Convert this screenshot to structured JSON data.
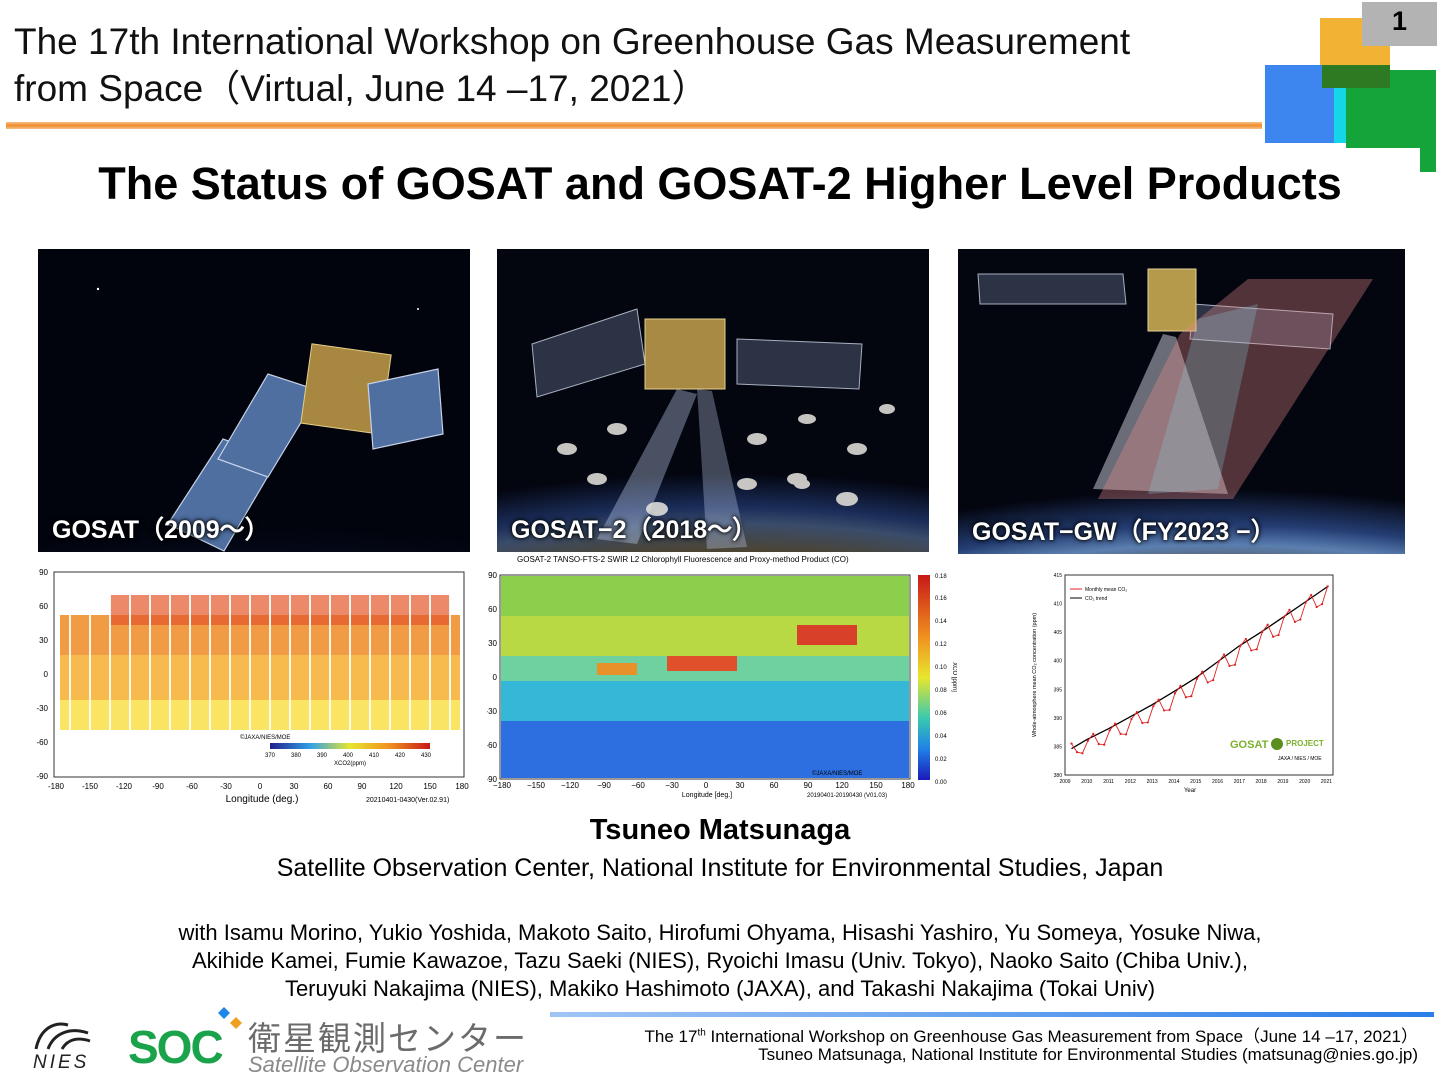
{
  "header": {
    "title_line1": "The 17th International Workshop on Greenhouse Gas Measurement",
    "title_line2": "from Space（Virtual, June 14 –17, 2021）",
    "page_number": "1",
    "accent_colors": [
      "#f2b233",
      "#3d86f0",
      "#14a43a",
      "#14d6e8",
      "#ef8c2a"
    ]
  },
  "main_title": "The Status of GOSAT and GOSAT-2 Higher Level Products",
  "photos": [
    {
      "caption": "GOSAT（2009～）"
    },
    {
      "caption": "GOSAT−2（2018～）"
    },
    {
      "caption": "GOSAT−GW（FY2023 −）"
    }
  ],
  "map_xco2": {
    "y_ticks": [
      "90",
      "60",
      "30",
      "0",
      "-30",
      "-60",
      "-90"
    ],
    "x_ticks": [
      "-180",
      "-150",
      "-120",
      "-90",
      "-60",
      "-30",
      "0",
      "30",
      "60",
      "90",
      "120",
      "150",
      "180"
    ],
    "xlabel": "Longitude (deg.)",
    "credit": "©JAXA/NIES/MOE",
    "colorbar_ticks": [
      "370",
      "380",
      "390",
      "400",
      "410",
      "420",
      "430"
    ],
    "colorbar_label": "XCO2(ppm)",
    "period": "20210401-0430(Ver.02.91)"
  },
  "map_xco": {
    "title": "GOSAT-2 TANSO-FTS-2 SWIR L2 Chlorophyll Fluorescence and Proxy-method Product (CO)",
    "y_ticks": [
      "90",
      "60",
      "30",
      "0",
      "-30",
      "-60",
      "-90"
    ],
    "x_ticks": [
      "−180",
      "−150",
      "−120",
      "−90",
      "−60",
      "−30",
      "0",
      "30",
      "60",
      "90",
      "120",
      "150",
      "180"
    ],
    "xlabel": "Longitude [deg.]",
    "colorbar_ticks": [
      "0.18",
      "0.16",
      "0.14",
      "0.12",
      "0.10",
      "0.08",
      "0.06",
      "0.04",
      "0.02",
      "0.00"
    ],
    "colorbar_label": "XCO [ppm]",
    "credit": "©JAXA/NIES/MOE",
    "period": "20190401-20190430 (V01.03)"
  },
  "chart_data": {
    "type": "line",
    "title": "",
    "xlabel": "Year",
    "ylabel": "Whole-atmosphere mean CO₂ concentration (ppm)",
    "x_ticks": [
      "2009",
      "2010",
      "2011",
      "2012",
      "2013",
      "2014",
      "2015",
      "2016",
      "2017",
      "2018",
      "2019",
      "2020",
      "2021"
    ],
    "y_ticks": [
      "380",
      "385",
      "390",
      "395",
      "400",
      "405",
      "410",
      "415"
    ],
    "ylim": [
      380,
      415
    ],
    "xlim": [
      2009,
      2021.3
    ],
    "legend": [
      "Monthly mean CO₂",
      "CO₂ trend"
    ],
    "legend_position": "top-left",
    "series": [
      {
        "name": "CO₂ trend",
        "color": "#000000",
        "x": [
          2009.3,
          2010,
          2011,
          2012,
          2013,
          2014,
          2015,
          2016,
          2017,
          2018,
          2019,
          2020,
          2021.1
        ],
        "y": [
          384.6,
          386.2,
          388.1,
          390.2,
          392.3,
          394.6,
          397.0,
          399.8,
          402.6,
          405.0,
          407.6,
          410.2,
          413.1
        ]
      },
      {
        "name": "Monthly mean CO₂",
        "color": "#e02020",
        "x": [
          2009.3,
          2009.55,
          2009.8,
          2010.05,
          2010.3,
          2010.55,
          2010.8,
          2011.05,
          2011.3,
          2011.55,
          2011.8,
          2012.05,
          2012.3,
          2012.55,
          2012.8,
          2013.05,
          2013.3,
          2013.55,
          2013.8,
          2014.05,
          2014.3,
          2014.55,
          2014.8,
          2015.05,
          2015.3,
          2015.55,
          2015.8,
          2016.05,
          2016.3,
          2016.55,
          2016.8,
          2017.05,
          2017.3,
          2017.55,
          2017.8,
          2018.05,
          2018.3,
          2018.55,
          2018.8,
          2019.05,
          2019.3,
          2019.55,
          2019.8,
          2020.05,
          2020.3,
          2020.55,
          2020.8,
          2021.05
        ],
        "y": [
          385.5,
          384.0,
          383.8,
          386.0,
          387.2,
          385.4,
          385.3,
          387.8,
          389.0,
          387.2,
          387.1,
          389.8,
          391.0,
          389.1,
          389.2,
          392.0,
          393.2,
          391.3,
          391.4,
          394.3,
          395.6,
          393.6,
          393.8,
          396.8,
          398.1,
          396.2,
          396.6,
          399.8,
          401.1,
          399.1,
          399.3,
          402.6,
          403.8,
          401.8,
          402.0,
          405.0,
          406.3,
          404.2,
          404.5,
          407.6,
          408.9,
          406.8,
          407.2,
          410.2,
          411.5,
          409.4,
          409.9,
          413.0
        ]
      }
    ]
  },
  "co2_plot_logo": {
    "brand": "GOSAT",
    "project": "PROJECT",
    "credit": "JAXA / NIES / MOE"
  },
  "author": "Tsuneo Matsunaga",
  "affiliation": "Satellite Observation Center, National Institute for Environmental Studies, Japan",
  "collaborators": [
    "with Isamu Morino, Yukio Yoshida, Makoto Saito, Hirofumi Ohyama, Hisashi Yashiro, Yu Someya, Yosuke Niwa,",
    "Akihide Kamei, Fumie Kawazoe, Tazu Saeki (NIES), Ryoichi Imasu (Univ. Tokyo), Naoko Saito (Chiba Univ.),",
    "Teruyuki Nakajima (NIES), Makiko Hashimoto (JAXA), and Takashi Nakajima (Tokai Univ)"
  ],
  "footer": {
    "line1_pre": "The 17",
    "line1_sup": "th",
    "line1_post": " International Workshop on Greenhouse Gas Measurement from Space（June 14 –17, 2021）",
    "line2": "Tsuneo Matsunaga, National Institute for Environmental Studies (matsunag@nies.go.jp)"
  },
  "logos": {
    "nies": "NIES",
    "soc": "SOC",
    "soc_japanese": "衛星観測センター",
    "soc_english": "Satellite Observation Center"
  }
}
